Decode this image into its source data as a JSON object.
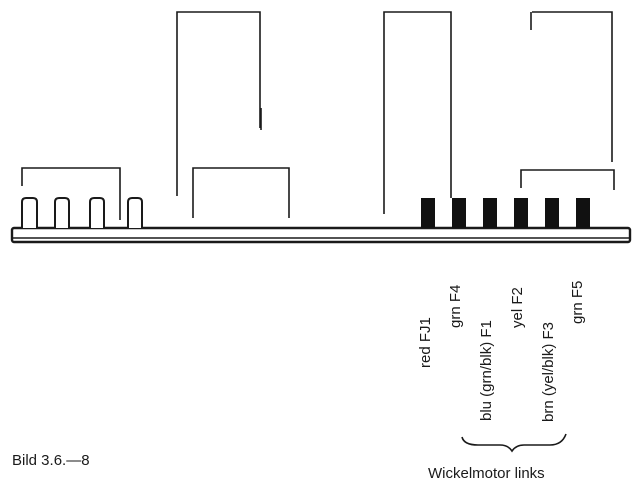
{
  "figure": {
    "caption": "Bild 3.6.—8",
    "group_label": "Wickelmotor links"
  },
  "wires": [
    {
      "label": "red FJ1"
    },
    {
      "label": "grn F4"
    },
    {
      "label": "blu (grn/blk) F1"
    },
    {
      "label": "yel F2"
    },
    {
      "label": "brn (yel/blk) F3"
    },
    {
      "label": "grn F5"
    }
  ]
}
